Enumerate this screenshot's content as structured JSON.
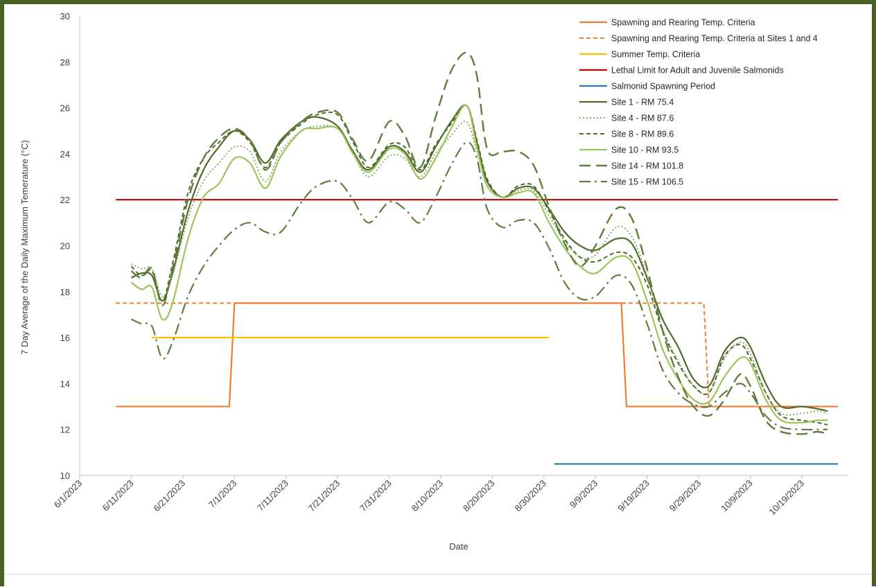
{
  "chart_data": {
    "type": "line",
    "title": "",
    "xlabel": "Date",
    "ylabel": "7 Day Average of the Daily Maximum Temerature (°C)",
    "ylim": [
      10,
      30
    ],
    "yticks": [
      10,
      12,
      14,
      16,
      18,
      20,
      22,
      24,
      26,
      28,
      30
    ],
    "xlim": [
      "2023-06-01",
      "2023-10-28"
    ],
    "xticks": [
      "6/1/2023",
      "6/11/2023",
      "6/21/2023",
      "7/1/2023",
      "7/11/2023",
      "7/21/2023",
      "7/31/2023",
      "8/10/2023",
      "8/20/2023",
      "8/30/2023",
      "9/9/2023",
      "9/19/2023",
      "9/29/2023",
      "10/9/2023",
      "10/19/2023"
    ],
    "grid": false,
    "legend_position": "top-right",
    "series": [
      {
        "name": "Spawning and Rearing Temp. Criteria",
        "color": "#ed7d31",
        "style": "solid",
        "x": [
          "2023-06-08",
          "2023-06-30",
          "2023-07-01",
          "2023-09-14",
          "2023-09-15",
          "2023-10-26"
        ],
        "y": [
          13,
          13,
          17.5,
          17.5,
          13,
          13
        ]
      },
      {
        "name": "Spawning and Rearing Temp. Criteria at Sites 1 and 4",
        "color": "#ed7d31",
        "style": "dash",
        "x": [
          "2023-06-08",
          "2023-09-30",
          "2023-10-01",
          "2023-10-26"
        ],
        "y": [
          17.5,
          17.5,
          13,
          13
        ]
      },
      {
        "name": "Summer Temp. Criteria",
        "color": "#ffc000",
        "style": "solid",
        "x": [
          "2023-06-15",
          "2023-08-31"
        ],
        "y": [
          16,
          16
        ]
      },
      {
        "name": "Lethal Limit for Adult and Juvenile Salmonids",
        "color": "#c00000",
        "style": "solid",
        "x": [
          "2023-06-08",
          "2023-10-26"
        ],
        "y": [
          22,
          22
        ]
      },
      {
        "name": "Salmonid Spawning Period",
        "color": "#2e75b6",
        "style": "solid",
        "x": [
          "2023-09-01",
          "2023-10-26"
        ],
        "y": [
          10.5,
          10.5
        ]
      },
      {
        "name": "Site 1 - RM 75.4",
        "color": "#4e6b2a",
        "style": "solid",
        "x": [
          "2023-06-11",
          "2023-06-13",
          "2023-06-15",
          "2023-06-17",
          "2023-06-19",
          "2023-06-22",
          "2023-06-25",
          "2023-06-28",
          "2023-07-01",
          "2023-07-04",
          "2023-07-07",
          "2023-07-10",
          "2023-07-14",
          "2023-07-17",
          "2023-07-21",
          "2023-07-24",
          "2023-07-27",
          "2023-07-31",
          "2023-08-03",
          "2023-08-06",
          "2023-08-09",
          "2023-08-12",
          "2023-08-15",
          "2023-08-17",
          "2023-08-19",
          "2023-08-22",
          "2023-08-25",
          "2023-08-28",
          "2023-08-31",
          "2023-09-03",
          "2023-09-06",
          "2023-09-09",
          "2023-09-13",
          "2023-09-16",
          "2023-09-19",
          "2023-09-22",
          "2023-09-25",
          "2023-09-28",
          "2023-10-01",
          "2023-10-04",
          "2023-10-07",
          "2023-10-09",
          "2023-10-12",
          "2023-10-15",
          "2023-10-19",
          "2023-10-22",
          "2023-10-24"
        ],
        "y": [
          18.6,
          18.8,
          18.7,
          17.6,
          18.8,
          21.5,
          23.3,
          24.3,
          25.0,
          24.6,
          23.6,
          24.6,
          25.4,
          25.6,
          25.2,
          24.1,
          23.3,
          24.3,
          24.1,
          23.2,
          24.3,
          25.4,
          26.1,
          24.5,
          22.8,
          22.1,
          22.5,
          22.5,
          21.6,
          20.6,
          20.0,
          19.8,
          20.3,
          20.1,
          18.6,
          16.8,
          15.6,
          14.2,
          13.9,
          15.4,
          16.0,
          15.6,
          14.0,
          13.0,
          13.0,
          12.9,
          12.8
        ]
      },
      {
        "name": "Site 4 - RM 87.6",
        "color": "#8aab62",
        "style": "dot",
        "x": [
          "2023-06-11",
          "2023-06-13",
          "2023-06-15",
          "2023-06-17",
          "2023-06-19",
          "2023-06-22",
          "2023-06-25",
          "2023-06-28",
          "2023-07-01",
          "2023-07-04",
          "2023-07-07",
          "2023-07-10",
          "2023-07-14",
          "2023-07-17",
          "2023-07-21",
          "2023-07-24",
          "2023-07-27",
          "2023-07-31",
          "2023-08-03",
          "2023-08-06",
          "2023-08-09",
          "2023-08-12",
          "2023-08-15",
          "2023-08-17",
          "2023-08-19",
          "2023-08-22",
          "2023-08-25",
          "2023-08-28",
          "2023-08-31",
          "2023-09-03",
          "2023-09-06",
          "2023-09-09",
          "2023-09-13",
          "2023-09-16",
          "2023-09-19",
          "2023-09-22",
          "2023-09-25",
          "2023-09-28",
          "2023-10-01",
          "2023-10-04",
          "2023-10-07",
          "2023-10-09",
          "2023-10-12",
          "2023-10-15",
          "2023-10-19",
          "2023-10-22",
          "2023-10-24"
        ],
        "y": [
          19.2,
          19.0,
          19.0,
          17.8,
          18.7,
          21.2,
          22.8,
          23.6,
          24.3,
          24.1,
          22.8,
          24.1,
          25.0,
          25.2,
          25.1,
          24.0,
          23.0,
          23.9,
          23.8,
          23.0,
          24.0,
          24.8,
          25.4,
          24.1,
          22.6,
          22.1,
          22.4,
          22.4,
          21.3,
          20.2,
          19.5,
          19.6,
          20.8,
          20.4,
          18.7,
          16.4,
          15.0,
          13.9,
          13.6,
          15.1,
          15.8,
          15.3,
          13.6,
          12.7,
          12.7,
          12.8,
          12.7
        ]
      },
      {
        "name": "Site 8 - RM 89.6",
        "color": "#4e6b2a",
        "style": "dash",
        "x": [
          "2023-06-11",
          "2023-06-13",
          "2023-06-15",
          "2023-06-17",
          "2023-06-19",
          "2023-06-22",
          "2023-06-25",
          "2023-06-28",
          "2023-07-01",
          "2023-07-04",
          "2023-07-07",
          "2023-07-10",
          "2023-07-14",
          "2023-07-17",
          "2023-07-21",
          "2023-07-24",
          "2023-07-27",
          "2023-07-31",
          "2023-08-03",
          "2023-08-06",
          "2023-08-09",
          "2023-08-12",
          "2023-08-15",
          "2023-08-17",
          "2023-08-19",
          "2023-08-22",
          "2023-08-25",
          "2023-08-28",
          "2023-08-31",
          "2023-09-03",
          "2023-09-06",
          "2023-09-09",
          "2023-09-13",
          "2023-09-16",
          "2023-09-19",
          "2023-09-22",
          "2023-09-25",
          "2023-09-28",
          "2023-10-01",
          "2023-10-04",
          "2023-10-07",
          "2023-10-09",
          "2023-10-12",
          "2023-10-15",
          "2023-10-19",
          "2023-10-22",
          "2023-10-24"
        ],
        "y": [
          19.1,
          18.7,
          18.9,
          17.6,
          19.2,
          22.3,
          23.8,
          24.5,
          25.0,
          24.5,
          23.4,
          24.5,
          25.3,
          25.7,
          25.7,
          24.5,
          23.4,
          24.4,
          24.3,
          23.3,
          24.4,
          25.3,
          26.1,
          24.6,
          22.9,
          22.1,
          22.6,
          22.6,
          21.5,
          20.3,
          19.5,
          19.3,
          19.7,
          19.5,
          18.3,
          16.3,
          14.9,
          13.9,
          13.6,
          15.2,
          15.7,
          15.1,
          13.6,
          12.6,
          12.4,
          12.3,
          12.2
        ]
      },
      {
        "name": "Site 10 - RM 93.5",
        "color": "#9bc45a",
        "style": "solid",
        "x": [
          "2023-06-11",
          "2023-06-13",
          "2023-06-15",
          "2023-06-17",
          "2023-06-19",
          "2023-06-22",
          "2023-06-25",
          "2023-06-28",
          "2023-07-01",
          "2023-07-04",
          "2023-07-07",
          "2023-07-10",
          "2023-07-14",
          "2023-07-17",
          "2023-07-21",
          "2023-07-24",
          "2023-07-27",
          "2023-07-31",
          "2023-08-03",
          "2023-08-06",
          "2023-08-09",
          "2023-08-12",
          "2023-08-15",
          "2023-08-17",
          "2023-08-19",
          "2023-08-22",
          "2023-08-25",
          "2023-08-28",
          "2023-08-31",
          "2023-09-03",
          "2023-09-06",
          "2023-09-09",
          "2023-09-13",
          "2023-09-16",
          "2023-09-19",
          "2023-09-22",
          "2023-09-25",
          "2023-09-28",
          "2023-10-01",
          "2023-10-04",
          "2023-10-07",
          "2023-10-09",
          "2023-10-12",
          "2023-10-15",
          "2023-10-19",
          "2023-10-22",
          "2023-10-24"
        ],
        "y": [
          18.4,
          18.1,
          18.2,
          16.8,
          17.5,
          20.3,
          22.1,
          22.7,
          23.8,
          23.6,
          22.5,
          23.9,
          25.0,
          25.1,
          25.1,
          24.0,
          23.2,
          24.2,
          24.0,
          22.9,
          23.8,
          25.1,
          26.1,
          24.3,
          22.6,
          22.1,
          22.3,
          22.3,
          21.0,
          19.9,
          19.1,
          18.8,
          19.5,
          19.3,
          17.6,
          15.5,
          14.2,
          13.3,
          13.2,
          14.3,
          15.1,
          14.9,
          13.3,
          12.4,
          12.3,
          12.4,
          12.4
        ]
      },
      {
        "name": "Site 14 - RM 101.8",
        "color": "#5e7d3a",
        "style": "longdash",
        "x": [
          "2023-06-11",
          "2023-06-13",
          "2023-06-15",
          "2023-06-17",
          "2023-06-19",
          "2023-06-22",
          "2023-06-25",
          "2023-06-28",
          "2023-07-01",
          "2023-07-04",
          "2023-07-07",
          "2023-07-10",
          "2023-07-14",
          "2023-07-17",
          "2023-07-21",
          "2023-07-24",
          "2023-07-27",
          "2023-07-31",
          "2023-08-03",
          "2023-08-06",
          "2023-08-09",
          "2023-08-12",
          "2023-08-15",
          "2023-08-17",
          "2023-08-19",
          "2023-08-22",
          "2023-08-25",
          "2023-08-28",
          "2023-08-31",
          "2023-09-03",
          "2023-09-06",
          "2023-09-09",
          "2023-09-13",
          "2023-09-16",
          "2023-09-19",
          "2023-09-22",
          "2023-09-25",
          "2023-09-28",
          "2023-10-01",
          "2023-10-04",
          "2023-10-07",
          "2023-10-09",
          "2023-10-12",
          "2023-10-15",
          "2023-10-19",
          "2023-10-22",
          "2023-10-24"
        ],
        "y": [
          18.9,
          18.6,
          19.0,
          17.4,
          19.0,
          22.0,
          23.8,
          24.7,
          25.1,
          24.6,
          23.3,
          24.5,
          25.4,
          25.8,
          25.8,
          24.6,
          23.7,
          25.4,
          24.8,
          23.4,
          25.6,
          27.6,
          28.4,
          27.4,
          24.2,
          24.1,
          24.1,
          23.5,
          21.7,
          20.1,
          19.1,
          20.0,
          21.6,
          21.2,
          19.0,
          16.3,
          14.3,
          13.0,
          12.6,
          13.3,
          14.4,
          13.9,
          12.4,
          11.9,
          11.8,
          11.9,
          11.8
        ]
      },
      {
        "name": "Site 15 - RM 106.5",
        "color": "#5e7d3a",
        "style": "dashdot",
        "x": [
          "2023-06-11",
          "2023-06-13",
          "2023-06-15",
          "2023-06-17",
          "2023-06-19",
          "2023-06-22",
          "2023-06-25",
          "2023-06-28",
          "2023-07-01",
          "2023-07-04",
          "2023-07-07",
          "2023-07-10",
          "2023-07-14",
          "2023-07-17",
          "2023-07-21",
          "2023-07-24",
          "2023-07-27",
          "2023-07-31",
          "2023-08-03",
          "2023-08-06",
          "2023-08-09",
          "2023-08-12",
          "2023-08-15",
          "2023-08-17",
          "2023-08-19",
          "2023-08-22",
          "2023-08-25",
          "2023-08-28",
          "2023-08-31",
          "2023-09-03",
          "2023-09-06",
          "2023-09-09",
          "2023-09-13",
          "2023-09-16",
          "2023-09-19",
          "2023-09-22",
          "2023-09-25",
          "2023-09-28",
          "2023-10-01",
          "2023-10-04",
          "2023-10-07",
          "2023-10-09",
          "2023-10-12",
          "2023-10-15",
          "2023-10-19",
          "2023-10-22",
          "2023-10-24"
        ],
        "y": [
          16.8,
          16.6,
          16.5,
          15.1,
          15.8,
          17.8,
          19.1,
          20.0,
          20.7,
          21.0,
          20.6,
          20.6,
          21.9,
          22.6,
          22.8,
          22.0,
          21.0,
          21.9,
          21.6,
          21.0,
          22.1,
          23.5,
          24.5,
          23.8,
          21.6,
          20.8,
          21.1,
          21.0,
          19.9,
          18.4,
          17.7,
          17.8,
          18.7,
          18.3,
          16.6,
          14.6,
          13.6,
          13.1,
          13.0,
          13.6,
          14.0,
          13.6,
          12.6,
          12.1,
          12.0,
          12.0,
          12.0
        ]
      }
    ]
  }
}
